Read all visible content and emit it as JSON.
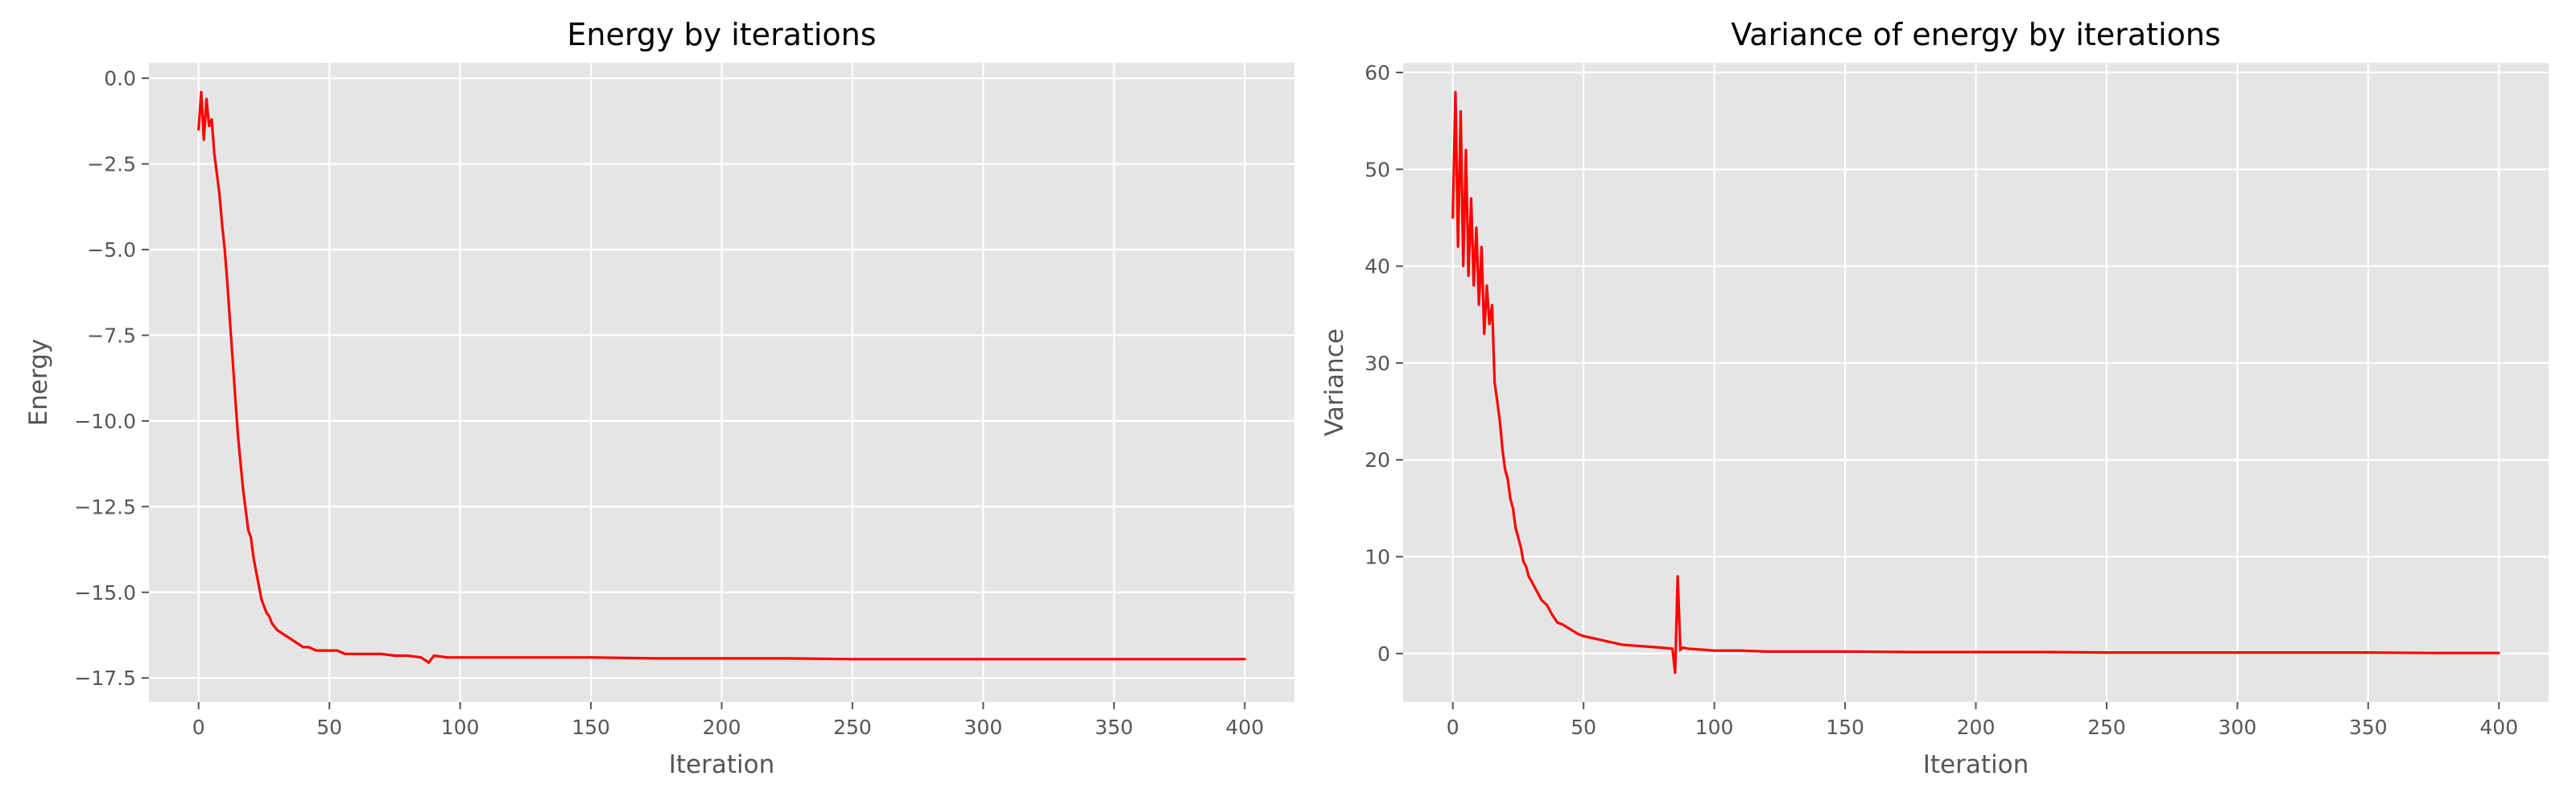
{
  "figure": {
    "background": "#ffffff"
  },
  "style": {
    "plot_background": "#e5e5e5",
    "grid_color": "#ffffff",
    "tick_label_color": "#555555",
    "axis_label_color": "#555555",
    "title_color": "#000000",
    "line_color": "#ff0000"
  },
  "chart_data": [
    {
      "type": "line",
      "title": "Energy by iterations",
      "xlabel": "Iteration",
      "ylabel": "Energy",
      "xlim": [
        -19,
        419
      ],
      "ylim": [
        -18.2,
        0.45
      ],
      "xticks": [
        0,
        50,
        100,
        150,
        200,
        250,
        300,
        350,
        400
      ],
      "xtick_labels": [
        "0",
        "50",
        "100",
        "150",
        "200",
        "250",
        "300",
        "350",
        "400"
      ],
      "yticks": [
        0,
        -2.5,
        -5,
        -7.5,
        -10,
        -12.5,
        -15,
        -17.5
      ],
      "ytick_labels": [
        "0.0",
        "−2.5",
        "−5.0",
        "−7.5",
        "−10.0",
        "−12.5",
        "−15.0",
        "−17.5"
      ],
      "grid": true,
      "series": [
        {
          "color": "#ff0000",
          "x": [
            0,
            1,
            2,
            3,
            4,
            5,
            6,
            7,
            8,
            9,
            10,
            11,
            12,
            13,
            14,
            15,
            16,
            17,
            18,
            19,
            20,
            21,
            22,
            23,
            24,
            25,
            26,
            27,
            28,
            29,
            30,
            32,
            34,
            36,
            38,
            40,
            42,
            45,
            48,
            50,
            53,
            56,
            60,
            65,
            70,
            75,
            80,
            85,
            88,
            90,
            95,
            100,
            110,
            120,
            130,
            140,
            150,
            175,
            200,
            225,
            250,
            275,
            300,
            325,
            350,
            375,
            400
          ],
          "y": [
            -1.5,
            -0.4,
            -1.8,
            -0.6,
            -1.4,
            -1.2,
            -2.2,
            -2.8,
            -3.4,
            -4.3,
            -5.0,
            -6.0,
            -7.1,
            -8.2,
            -9.3,
            -10.4,
            -11.2,
            -12.0,
            -12.6,
            -13.2,
            -13.4,
            -14.0,
            -14.4,
            -14.8,
            -15.2,
            -15.4,
            -15.6,
            -15.7,
            -15.9,
            -16.0,
            -16.1,
            -16.2,
            -16.3,
            -16.4,
            -16.5,
            -16.6,
            -16.6,
            -16.7,
            -16.7,
            -16.7,
            -16.7,
            -16.8,
            -16.8,
            -16.8,
            -16.8,
            -16.85,
            -16.85,
            -16.9,
            -17.05,
            -16.85,
            -16.9,
            -16.9,
            -16.9,
            -16.9,
            -16.9,
            -16.9,
            -16.9,
            -16.93,
            -16.93,
            -16.93,
            -16.95,
            -16.95,
            -16.95,
            -16.95,
            -16.95,
            -16.95,
            -16.95
          ]
        }
      ]
    },
    {
      "type": "line",
      "title": "Variance of energy by iterations",
      "xlabel": "Iteration",
      "ylabel": "Variance",
      "xlim": [
        -19,
        419
      ],
      "ylim": [
        -5,
        61
      ],
      "xticks": [
        0,
        50,
        100,
        150,
        200,
        250,
        300,
        350,
        400
      ],
      "xtick_labels": [
        "0",
        "50",
        "100",
        "150",
        "200",
        "250",
        "300",
        "350",
        "400"
      ],
      "yticks": [
        0,
        10,
        20,
        30,
        40,
        50,
        60
      ],
      "ytick_labels": [
        "0",
        "10",
        "20",
        "30",
        "40",
        "50",
        "60"
      ],
      "grid": true,
      "series": [
        {
          "color": "#ff0000",
          "x": [
            0,
            1,
            2,
            3,
            4,
            5,
            6,
            7,
            8,
            9,
            10,
            11,
            12,
            13,
            14,
            15,
            16,
            17,
            18,
            19,
            20,
            21,
            22,
            23,
            24,
            25,
            26,
            27,
            28,
            29,
            30,
            32,
            34,
            36,
            38,
            40,
            42,
            45,
            48,
            50,
            55,
            60,
            65,
            70,
            75,
            80,
            84,
            85,
            86,
            87,
            88,
            90,
            95,
            100,
            110,
            120,
            130,
            150,
            175,
            200,
            225,
            250,
            275,
            300,
            325,
            350,
            375,
            400
          ],
          "y": [
            45,
            58,
            42,
            56,
            40,
            52,
            39,
            47,
            38,
            44,
            36,
            42,
            33,
            38,
            34,
            36,
            28,
            26,
            24,
            21,
            19,
            18,
            16,
            15,
            13,
            12,
            11,
            9.5,
            9,
            8,
            7.5,
            6.5,
            5.5,
            5,
            4,
            3.2,
            3,
            2.5,
            2,
            1.8,
            1.5,
            1.2,
            0.9,
            0.8,
            0.7,
            0.6,
            0.5,
            -2,
            8,
            0.4,
            0.6,
            0.5,
            0.4,
            0.3,
            0.3,
            0.2,
            0.2,
            0.2,
            0.15,
            0.15,
            0.15,
            0.1,
            0.1,
            0.1,
            0.1,
            0.1,
            0.05,
            0.05
          ]
        }
      ]
    }
  ]
}
